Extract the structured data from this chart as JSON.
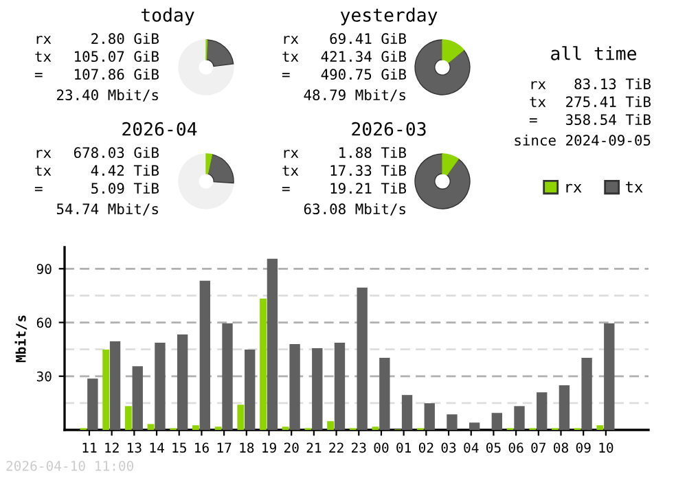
{
  "chart_data": [
    {
      "type": "donut",
      "title": "today",
      "categories": [
        null,
        null,
        null
      ],
      "values": [
        0.6,
        22.4,
        77.0
      ],
      "colors": [
        "#8fd400",
        "#606060",
        "#f0f0f0"
      ],
      "annotations": [
        "rx",
        "2.80 GiB",
        "tx",
        "105.07 GiB",
        "=",
        "107.86 GiB",
        "23.40 Mbit/s"
      ]
    },
    {
      "type": "donut",
      "title": "yesterday",
      "categories": [
        null,
        null
      ],
      "values": [
        14.1,
        85.9
      ],
      "colors": [
        "#8fd400",
        "#606060"
      ],
      "annotations": [
        "rx",
        "69.41 GiB",
        "tx",
        "421.34 GiB",
        "=",
        "490.75 GiB",
        "48.79 Mbit/s"
      ]
    },
    {
      "type": "other",
      "title": "all time",
      "annotations": [
        "rx",
        "83.13 TiB",
        "tx",
        "275.41 TiB",
        "=",
        "358.54 TiB",
        "since 2024-09-05"
      ]
    },
    {
      "type": "donut",
      "title": "2026-04",
      "categories": [
        null,
        null,
        null
      ],
      "values": [
        3.4,
        22.6,
        74.0
      ],
      "colors": [
        "#8fd400",
        "#606060",
        "#f0f0f0"
      ],
      "annotations": [
        "rx",
        "678.03 GiB",
        "tx",
        "4.42 TiB",
        "=",
        "5.09 TiB",
        "54.74 Mbit/s"
      ]
    },
    {
      "type": "donut",
      "title": "2026-03",
      "categories": [
        null,
        null
      ],
      "values": [
        9.8,
        90.2
      ],
      "colors": [
        "#8fd400",
        "#606060"
      ],
      "annotations": [
        "rx",
        "1.88 TiB",
        "tx",
        "17.33 TiB",
        "=",
        "19.21 TiB",
        "63.08 Mbit/s"
      ]
    },
    {
      "type": "bar",
      "ylabel": "Mbit/s",
      "categories": [
        "11",
        "12",
        "13",
        "14",
        "15",
        "16",
        "17",
        "18",
        "19",
        "20",
        "21",
        "22",
        "23",
        "00",
        "01",
        "02",
        "03",
        "04",
        "05",
        "06",
        "07",
        "08",
        "09",
        "10"
      ],
      "series": [
        {
          "name": "rx",
          "color": "#8fd400",
          "values": [
            1,
            44.9,
            13.3,
            3.3,
            1,
            2.6,
            1.8,
            14.1,
            73.3,
            1.8,
            1,
            4.9,
            1,
            1.8,
            0.3,
            1,
            0,
            0,
            0,
            1,
            1,
            1,
            1,
            2.6
          ]
        },
        {
          "name": "tx",
          "color": "#606060",
          "values": [
            28.7,
            49.5,
            35.6,
            48.7,
            53.3,
            83.3,
            59.5,
            44.9,
            95.6,
            47.9,
            45.6,
            48.7,
            79.5,
            40.3,
            19.5,
            14.9,
            8.7,
            4.1,
            9.5,
            13.3,
            21,
            24.9,
            40.3,
            59.5
          ]
        }
      ],
      "ylim": [
        0,
        102
      ],
      "yticks": [
        {
          "value": 15,
          "label": null
        },
        30,
        {
          "value": 45,
          "label": null
        },
        60,
        {
          "value": 75,
          "label": null
        },
        90
      ],
      "grid": "y",
      "legend": "top right",
      "annotations": [
        "2026-04-10 11:00"
      ]
    }
  ]
}
